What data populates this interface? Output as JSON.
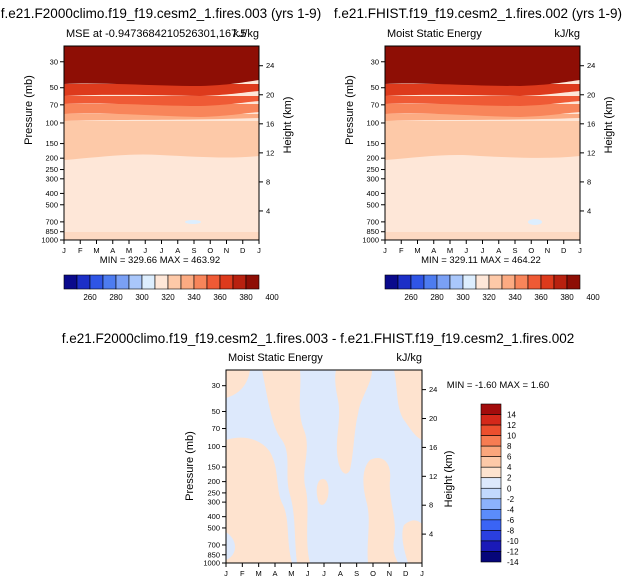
{
  "colors": {
    "mse": [
      "#0a0a8c",
      "#1c2fc7",
      "#2f55e6",
      "#4d7cf0",
      "#7aa0f5",
      "#a9c7fb",
      "#ddeefe",
      "#fee7d8",
      "#fdc9a8",
      "#fcab82",
      "#f8855a",
      "#ef5a35",
      "#dd3a1c",
      "#b8210f",
      "#8e0e05"
    ],
    "diff": [
      "#06067a",
      "#1a1ab8",
      "#2a3fe0",
      "#3a64f5",
      "#5b8cfb",
      "#8cb2fc",
      "#c2d9fd",
      "#dde9fc",
      "#fee3cf",
      "#fdc9a8",
      "#fba67c",
      "#f77c52",
      "#ec4f2e",
      "#d4281a",
      "#a30c0c"
    ]
  },
  "chart_data": [
    {
      "type": "heatmap",
      "title": "f.e21.F2000climo.f19_f19.cesm2_1.fires.003 (yrs 1-9)",
      "subtitle_left": "MSE at -0.9473684210526301,167.5",
      "subtitle_right": "kJ/kg",
      "ylabel": "Pressure (mb)",
      "y2label": "Height (km)",
      "x_ticks": [
        "J",
        "F",
        "M",
        "A",
        "M",
        "J",
        "J",
        "A",
        "S",
        "O",
        "N",
        "D",
        "J"
      ],
      "pressure_ticks": [
        "30",
        "50",
        "70",
        "100",
        "150",
        "200",
        "250",
        "300",
        "400",
        "500",
        "700",
        "850",
        "1000"
      ],
      "height_ticks": [
        "4",
        "8",
        "12",
        "16",
        "20",
        "24"
      ],
      "minmax": "MIN = 329.66   MAX = 463.92",
      "colorbar_labels": [
        "260",
        "280",
        "300",
        "320",
        "340",
        "360",
        "380",
        "400"
      ],
      "levels": [
        260,
        270,
        280,
        290,
        300,
        310,
        320,
        330,
        340,
        350,
        360,
        370,
        380,
        390,
        400
      ],
      "band_boundaries_mb": [
        {
          "from": 1000,
          "to": 930,
          "value": 335
        },
        {
          "from": 930,
          "to": 210,
          "value": 332
        },
        {
          "from": 210,
          "to": 110,
          "value": 345
        },
        {
          "from": 110,
          "to": 100,
          "value": 352
        },
        {
          "from": 100,
          "to": 85,
          "value": 365
        },
        {
          "from": 85,
          "to": 75,
          "value": 375
        },
        {
          "from": 75,
          "to": 60,
          "value": 388
        },
        {
          "from": 60,
          "to": 20,
          "value": 420
        }
      ]
    },
    {
      "type": "heatmap",
      "title": "f.e21.FHIST.f19_f19.cesm2_1.fires.002 (yrs 1-9)",
      "subtitle_left": "Moist Static Energy",
      "subtitle_right": "kJ/kg",
      "ylabel": "Pressure (mb)",
      "y2label": "Height (km)",
      "x_ticks": [
        "J",
        "F",
        "M",
        "A",
        "M",
        "J",
        "J",
        "A",
        "S",
        "O",
        "N",
        "D",
        "J"
      ],
      "pressure_ticks": [
        "30",
        "50",
        "70",
        "100",
        "150",
        "200",
        "250",
        "300",
        "400",
        "500",
        "700",
        "850",
        "1000"
      ],
      "height_ticks": [
        "4",
        "8",
        "12",
        "16",
        "20",
        "24"
      ],
      "minmax": "MIN = 329.11   MAX = 464.22",
      "colorbar_labels": [
        "260",
        "280",
        "300",
        "320",
        "340",
        "360",
        "380",
        "400"
      ],
      "levels": [
        260,
        270,
        280,
        290,
        300,
        310,
        320,
        330,
        340,
        350,
        360,
        370,
        380,
        390,
        400
      ]
    },
    {
      "type": "heatmap",
      "title": "f.e21.F2000climo.f19_f19.cesm2_1.fires.003 - f.e21.FHIST.f19_f19.cesm2_1.fires.002",
      "subtitle_left": "Moist Static Energy",
      "subtitle_right": "kJ/kg",
      "ylabel": "Pressure (mb)",
      "y2label": "Height (km)",
      "x_ticks": [
        "J",
        "F",
        "M",
        "A",
        "M",
        "J",
        "J",
        "A",
        "S",
        "O",
        "N",
        "D",
        "J"
      ],
      "pressure_ticks": [
        "30",
        "50",
        "70",
        "100",
        "150",
        "200",
        "250",
        "300",
        "400",
        "500",
        "700",
        "850",
        "1000"
      ],
      "height_ticks": [
        "4",
        "8",
        "12",
        "16",
        "20",
        "24"
      ],
      "minmax": "MIN =  -1.60   MAX =   1.60",
      "colorbar_labels": [
        "14",
        "12",
        "10",
        "8",
        "6",
        "4",
        "2",
        "0",
        "-2",
        "-4",
        "-6",
        "-8",
        "-10",
        "-12",
        "-14"
      ],
      "levels": [
        -14,
        -12,
        -10,
        -8,
        -6,
        -4,
        -2,
        0,
        2,
        4,
        6,
        8,
        10,
        12,
        14
      ]
    }
  ]
}
